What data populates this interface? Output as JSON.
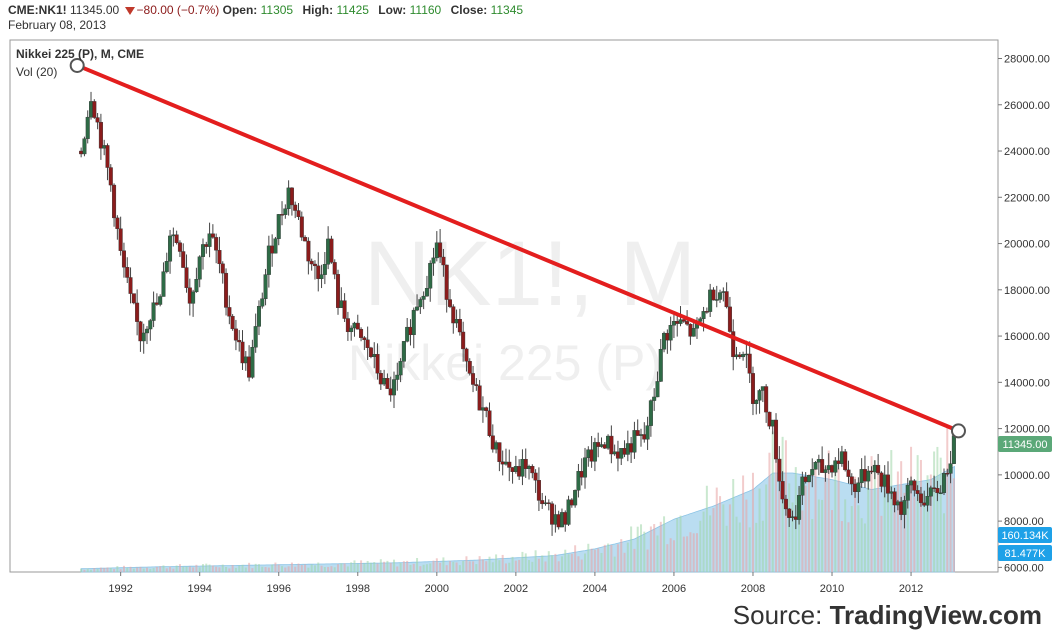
{
  "header": {
    "symbol": "CME:NK1!",
    "last": "11345.00",
    "change": "−80.00 (−0.7%)",
    "open_label": "Open:",
    "open": "11305",
    "high_label": "High:",
    "high": "11425",
    "low_label": "Low:",
    "low": "11160",
    "close_label": "Close:",
    "close": "11345",
    "date": "February 08, 2013"
  },
  "legend": {
    "title": "Nikkei 225 (P), M, CME",
    "volume": "Vol (20)"
  },
  "watermark": {
    "line1": "NK1!, M",
    "line2": "Nikkei 225 (P)"
  },
  "badges": {
    "price": "11345.00",
    "vol_ma": "160.134K",
    "vol": "81.477K"
  },
  "source": {
    "prefix": "Source: ",
    "brand": "TradingView.com"
  },
  "colors": {
    "up": "#2e6b46",
    "down": "#8b1c1c",
    "trendline": "#e31e1e",
    "volume_area": "#a9d4ee",
    "price_badge": "#5ba878",
    "vol_badge": "#1ea1e8",
    "vol_ma_badge": "#1ea1e8"
  },
  "chart_data": {
    "type": "line",
    "subtype": "candlestick",
    "title": "Nikkei 225 (P), M, CME",
    "x_ticks": [
      "1992",
      "1994",
      "1996",
      "1998",
      "2000",
      "2002",
      "2004",
      "2006",
      "2008",
      "2010",
      "2012"
    ],
    "y_ticks": [
      "6000.00",
      "8000.00",
      "10000.00",
      "12000.00",
      "14000.00",
      "16000.00",
      "18000.00",
      "20000.00",
      "22000.00",
      "24000.00",
      "26000.00",
      "28000.00"
    ],
    "ylim": [
      5800,
      28800
    ],
    "xlim": [
      1989.2,
      2014.2
    ],
    "grid": false,
    "series": [
      {
        "name": "NK1!",
        "kind": "close",
        "x": [
          1991.0,
          1991.25,
          1991.5,
          1991.75,
          1992.0,
          1992.25,
          1992.5,
          1992.75,
          1993.0,
          1993.25,
          1993.5,
          1993.75,
          1994.0,
          1994.25,
          1994.5,
          1994.75,
          1995.0,
          1995.25,
          1995.5,
          1995.75,
          1996.0,
          1996.25,
          1996.5,
          1996.75,
          1997.0,
          1997.25,
          1997.5,
          1997.75,
          1998.0,
          1998.25,
          1998.5,
          1998.75,
          1999.0,
          1999.25,
          1999.5,
          1999.75,
          2000.0,
          2000.25,
          2000.5,
          2000.75,
          2001.0,
          2001.25,
          2001.5,
          2001.75,
          2002.0,
          2002.25,
          2002.5,
          2002.75,
          2003.0,
          2003.25,
          2003.5,
          2003.75,
          2004.0,
          2004.25,
          2004.5,
          2004.75,
          2005.0,
          2005.25,
          2005.5,
          2005.75,
          2006.0,
          2006.25,
          2006.5,
          2006.75,
          2007.0,
          2007.25,
          2007.5,
          2007.75,
          2008.0,
          2008.25,
          2008.5,
          2008.75,
          2009.0,
          2009.25,
          2009.5,
          2009.75,
          2010.0,
          2010.25,
          2010.5,
          2010.75,
          2011.0,
          2011.25,
          2011.5,
          2011.75,
          2012.0,
          2012.25,
          2012.5,
          2012.75,
          2013.1
        ],
        "y": [
          24000,
          26500,
          24500,
          22500,
          19500,
          17500,
          16000,
          17000,
          17500,
          20500,
          20000,
          17500,
          19500,
          20500,
          19000,
          17000,
          15500,
          14500,
          17000,
          19500,
          21000,
          22300,
          21000,
          19500,
          18500,
          20000,
          17500,
          16500,
          16000,
          15500,
          14500,
          13500,
          14000,
          16000,
          17500,
          18500,
          20000,
          18000,
          16500,
          14500,
          13500,
          12500,
          11000,
          10500,
          10000,
          10500,
          9500,
          8500,
          8200,
          8000,
          9500,
          10500,
          11000,
          11500,
          11000,
          11000,
          11500,
          11500,
          13500,
          16000,
          16500,
          16500,
          16000,
          17000,
          18000,
          18000,
          15500,
          15500,
          13500,
          13500,
          12000,
          9000,
          8000,
          9500,
          10300,
          10200,
          10500,
          10800,
          9500,
          9800,
          10500,
          9800,
          9300,
          8500,
          9500,
          9000,
          9000,
          9500,
          11345
        ]
      },
      {
        "name": "Vol (20)",
        "kind": "volume",
        "x": [
          1991.0,
          1993.0,
          1995.0,
          1997.0,
          1999.0,
          2001.0,
          2003.0,
          2004.0,
          2005.0,
          2006.0,
          2007.0,
          2008.0,
          2008.5,
          2009.0,
          2010.0,
          2011.0,
          2012.0,
          2012.5,
          2013.1
        ],
        "y": [
          5,
          8,
          10,
          12,
          14,
          18,
          25,
          35,
          50,
          80,
          100,
          125,
          150,
          150,
          140,
          125,
          135,
          140,
          160
        ]
      }
    ],
    "annotations": [
      {
        "type": "trendline",
        "from": [
          1990.9,
          27700
        ],
        "to": [
          2013.2,
          11900
        ]
      }
    ]
  }
}
